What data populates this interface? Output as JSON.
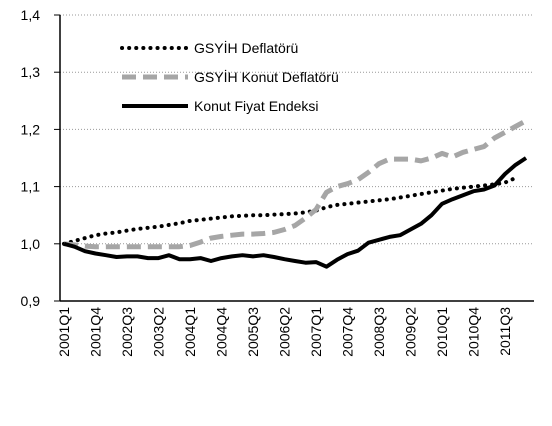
{
  "chart_data": {
    "type": "line",
    "categories": [
      "2001Q1",
      null,
      null,
      "2001Q4",
      null,
      null,
      "2002Q3",
      null,
      null,
      "2003Q2",
      null,
      null,
      "2004Q1",
      null,
      null,
      "2004Q4",
      null,
      null,
      "2005Q3",
      null,
      null,
      "2006Q2",
      null,
      null,
      "2007Q1",
      null,
      null,
      "2007Q4",
      null,
      null,
      "2008Q3",
      null,
      null,
      "2009Q2",
      null,
      null,
      "2010Q1",
      null,
      null,
      "2010Q4",
      null,
      null,
      "2011Q3",
      null,
      null
    ],
    "series": [
      {
        "name": "GSYİH Deflatörü",
        "color": "#000000",
        "line_style": "dotted",
        "values": [
          1.0,
          1.005,
          1.01,
          1.015,
          1.018,
          1.02,
          1.023,
          1.026,
          1.028,
          1.03,
          1.033,
          1.036,
          1.04,
          1.042,
          1.044,
          1.046,
          1.048,
          1.049,
          1.05,
          1.05,
          1.051,
          1.052,
          1.053,
          1.055,
          1.058,
          1.064,
          1.068,
          1.07,
          1.072,
          1.074,
          1.076,
          1.078,
          1.081,
          1.084,
          1.087,
          1.09,
          1.093,
          1.096,
          1.098,
          1.1,
          1.102,
          1.104,
          1.107,
          1.115,
          null
        ]
      },
      {
        "name": "GSYİH Konut Deflatörü",
        "color": "#a6a6a6",
        "line_style": "dashed",
        "values": [
          1.0,
          0.998,
          0.996,
          0.995,
          0.995,
          0.995,
          0.995,
          0.995,
          0.995,
          0.995,
          0.995,
          0.995,
          0.997,
          1.003,
          1.01,
          1.013,
          1.015,
          1.017,
          1.017,
          1.018,
          1.02,
          1.025,
          1.032,
          1.045,
          1.06,
          1.09,
          1.1,
          1.105,
          1.112,
          1.125,
          1.14,
          1.148,
          1.148,
          1.148,
          1.145,
          1.15,
          1.158,
          1.152,
          1.16,
          1.165,
          1.17,
          1.185,
          1.195,
          1.205,
          1.215
        ]
      },
      {
        "name": "Konut Fiyat Endeksi",
        "color": "#000000",
        "line_style": "solid",
        "values": [
          1.0,
          0.995,
          0.987,
          0.983,
          0.98,
          0.977,
          0.978,
          0.978,
          0.975,
          0.975,
          0.98,
          0.973,
          0.973,
          0.975,
          0.97,
          0.975,
          0.978,
          0.98,
          0.978,
          0.98,
          0.977,
          0.973,
          0.97,
          0.967,
          0.968,
          0.96,
          0.972,
          0.982,
          0.988,
          1.002,
          1.007,
          1.012,
          1.015,
          1.025,
          1.035,
          1.05,
          1.07,
          1.078,
          1.085,
          1.092,
          1.095,
          1.102,
          1.122,
          1.138,
          1.15
        ]
      }
    ],
    "ylim": [
      0.9,
      1.4
    ],
    "yticks": [
      {
        "value": 0.9,
        "label": "0,9"
      },
      {
        "value": 1.0,
        "label": "1,0"
      },
      {
        "value": 1.1,
        "label": "1,1"
      },
      {
        "value": 1.2,
        "label": "1,2"
      },
      {
        "value": 1.3,
        "label": "1,3"
      },
      {
        "value": 1.4,
        "label": "1,4"
      }
    ],
    "grid": true
  }
}
